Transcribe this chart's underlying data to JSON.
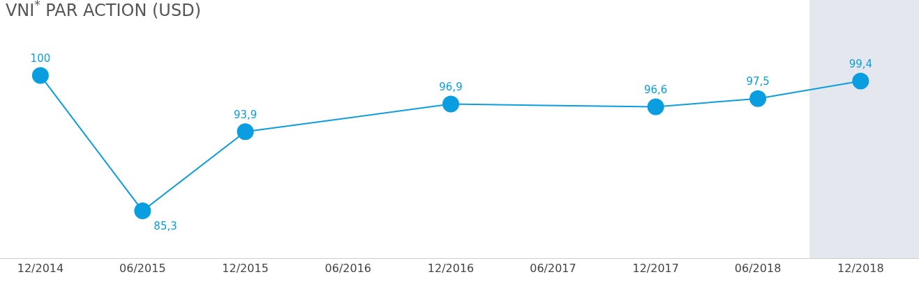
{
  "chart_data": {
    "type": "line",
    "title": "VNI$^{*}$ PAR ACTION (USD)",
    "x": [
      "2014-12",
      "2015-06",
      "2015-12",
      "2016-12",
      "2017-12",
      "2018-06",
      "2018-12"
    ],
    "series": [
      {
        "color": "#0a9de0",
        "values": [
          100,
          85.3,
          93.9,
          96.9,
          96.6,
          97.5,
          99.4
        ],
        "value_labels": [
          "100",
          "85,3",
          "93,9",
          "96,9",
          "96,6",
          "97,5",
          "99,4"
        ]
      }
    ],
    "xlim": [
      "2014-09-20",
      "2019-03-15"
    ],
    "xticks": [
      {
        "value": "2014-12",
        "label": "12/2014"
      },
      {
        "value": "2015-06",
        "label": "06/2015"
      },
      {
        "value": "2015-12",
        "label": "12/2015"
      },
      {
        "value": "2016-06",
        "label": "06/2016"
      },
      {
        "value": "2016-12",
        "label": "12/2016"
      },
      {
        "value": "2017-06",
        "label": "06/2017"
      },
      {
        "value": "2017-12",
        "label": "12/2017"
      },
      {
        "value": "2018-06",
        "label": "06/2018"
      },
      {
        "value": "2018-12",
        "label": "12/2018"
      }
    ],
    "tick_labels": "x",
    "grid": false,
    "marker": "circle",
    "line_style": "solid",
    "bands": [
      {
        "axis": "x",
        "from": "2018-09-01",
        "to": "2019-03-15",
        "color": "#e4e8ee"
      }
    ]
  }
}
